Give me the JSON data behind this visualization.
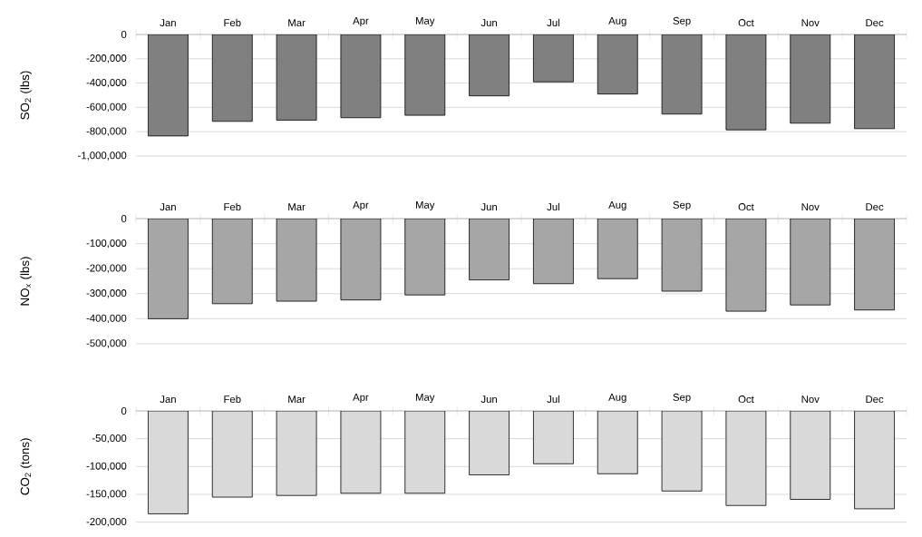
{
  "chart_data": [
    {
      "type": "bar",
      "ylabel": "SO$_{2}$ (lbs)",
      "categories": [
        "Jan",
        "Feb",
        "Mar",
        "Apr",
        "May",
        "Jun",
        "Jul",
        "Aug",
        "Sep",
        "Oct",
        "Nov",
        "Dec"
      ],
      "values": [
        -835000,
        -715000,
        -705000,
        -685000,
        -665000,
        -505000,
        -390000,
        -490000,
        -655000,
        -785000,
        -730000,
        -775000
      ],
      "color": "#808080",
      "ylim": [
        -1000000,
        0
      ],
      "yticks": [
        {
          "value": -1000000,
          "label": "-1,000,000"
        },
        {
          "value": -800000,
          "label": "-800,000"
        },
        {
          "value": -600000,
          "label": "-600,000"
        },
        {
          "value": -400000,
          "label": "-400,000"
        },
        {
          "value": -200000,
          "label": "-200,000"
        },
        0
      ],
      "grid": "y"
    },
    {
      "type": "bar",
      "ylabel": "NO$_{x}$ (lbs)",
      "categories": [
        "Jan",
        "Feb",
        "Mar",
        "Apr",
        "May",
        "Jun",
        "Jul",
        "Aug",
        "Sep",
        "Oct",
        "Nov",
        "Dec"
      ],
      "values": [
        -400000,
        -340000,
        -330000,
        -325000,
        -305000,
        -245000,
        -260000,
        -240000,
        -290000,
        -370000,
        -345000,
        -365000
      ],
      "color": "#a6a6a6",
      "ylim": [
        -500000,
        0
      ],
      "yticks": [
        {
          "value": -500000,
          "label": "-500,000"
        },
        {
          "value": -400000,
          "label": "-400,000"
        },
        {
          "value": -300000,
          "label": "-300,000"
        },
        {
          "value": -200000,
          "label": "-200,000"
        },
        {
          "value": -100000,
          "label": "-100,000"
        },
        0
      ],
      "grid": "y"
    },
    {
      "type": "bar",
      "ylabel": "CO$_{2}$ (tons)",
      "categories": [
        "Jan",
        "Feb",
        "Mar",
        "Apr",
        "May",
        "Jun",
        "Jul",
        "Aug",
        "Sep",
        "Oct",
        "Nov",
        "Dec"
      ],
      "values": [
        -185000,
        -155000,
        -152000,
        -148000,
        -148000,
        -115000,
        -95000,
        -113000,
        -144000,
        -170000,
        -159000,
        -176000
      ],
      "color": "#d9d9d9",
      "ylim": [
        -200000,
        0
      ],
      "yticks": [
        {
          "value": -200000,
          "label": "-200,000"
        },
        {
          "value": -150000,
          "label": "-150,000"
        },
        {
          "value": -100000,
          "label": "-100,000"
        },
        {
          "value": -50000,
          "label": "-50,000"
        },
        0
      ],
      "grid": "y"
    }
  ]
}
